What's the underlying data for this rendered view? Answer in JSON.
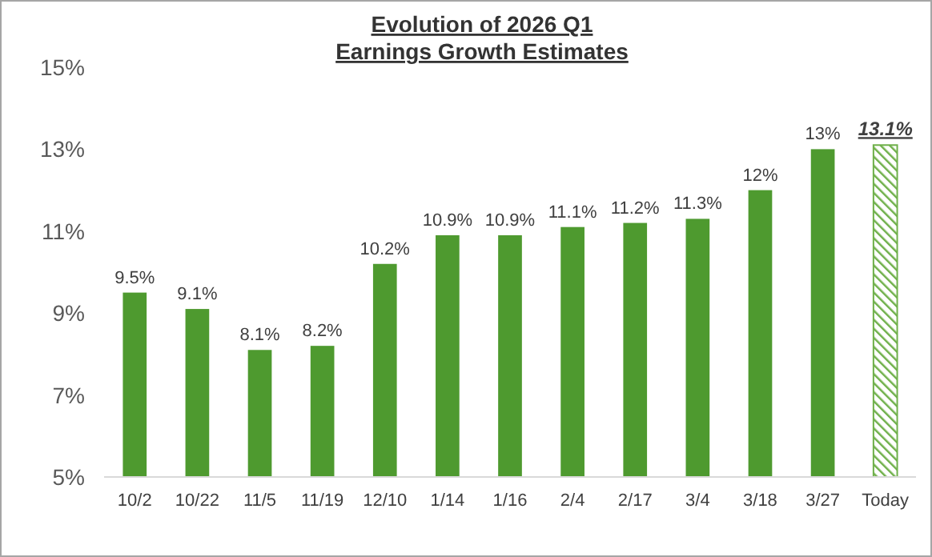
{
  "chart_data": {
    "type": "bar",
    "title": "Evolution of 2026 Q1\nEarnings Growth Estimates",
    "categories": [
      "10/2",
      "10/22",
      "11/5",
      "11/19",
      "12/10",
      "1/14",
      "1/16",
      "2/4",
      "2/17",
      "3/4",
      "3/18",
      "3/27",
      "Today"
    ],
    "values": [
      9.5,
      9.1,
      8.1,
      8.2,
      10.2,
      10.9,
      10.9,
      11.1,
      11.2,
      11.3,
      12,
      13,
      13.1
    ],
    "value_labels": [
      "9.5%",
      "9.1%",
      "8.1%",
      "8.2%",
      "10.2%",
      "10.9%",
      "10.9%",
      "11.1%",
      "11.2%",
      "11.3%",
      "12%",
      "13%",
      "13.1%"
    ],
    "color": "#4e9a2f",
    "colors": [
      "#4e9a2f",
      "#4e9a2f",
      "#4e9a2f",
      "#4e9a2f",
      "#4e9a2f",
      "#4e9a2f",
      "#4e9a2f",
      "#4e9a2f",
      "#4e9a2f",
      "#4e9a2f",
      "#4e9a2f",
      "#4e9a2f",
      "#6fb04a"
    ],
    "ylim": [
      5,
      15
    ],
    "yticks": [
      {
        "value": 5,
        "label": "5%"
      },
      {
        "value": 7,
        "label": "7%"
      },
      {
        "value": 9,
        "label": "9%"
      },
      {
        "value": 11,
        "label": "11%"
      },
      {
        "value": 13,
        "label": "13%"
      },
      {
        "value": 15,
        "label": "15%"
      }
    ],
    "grid": false
  }
}
